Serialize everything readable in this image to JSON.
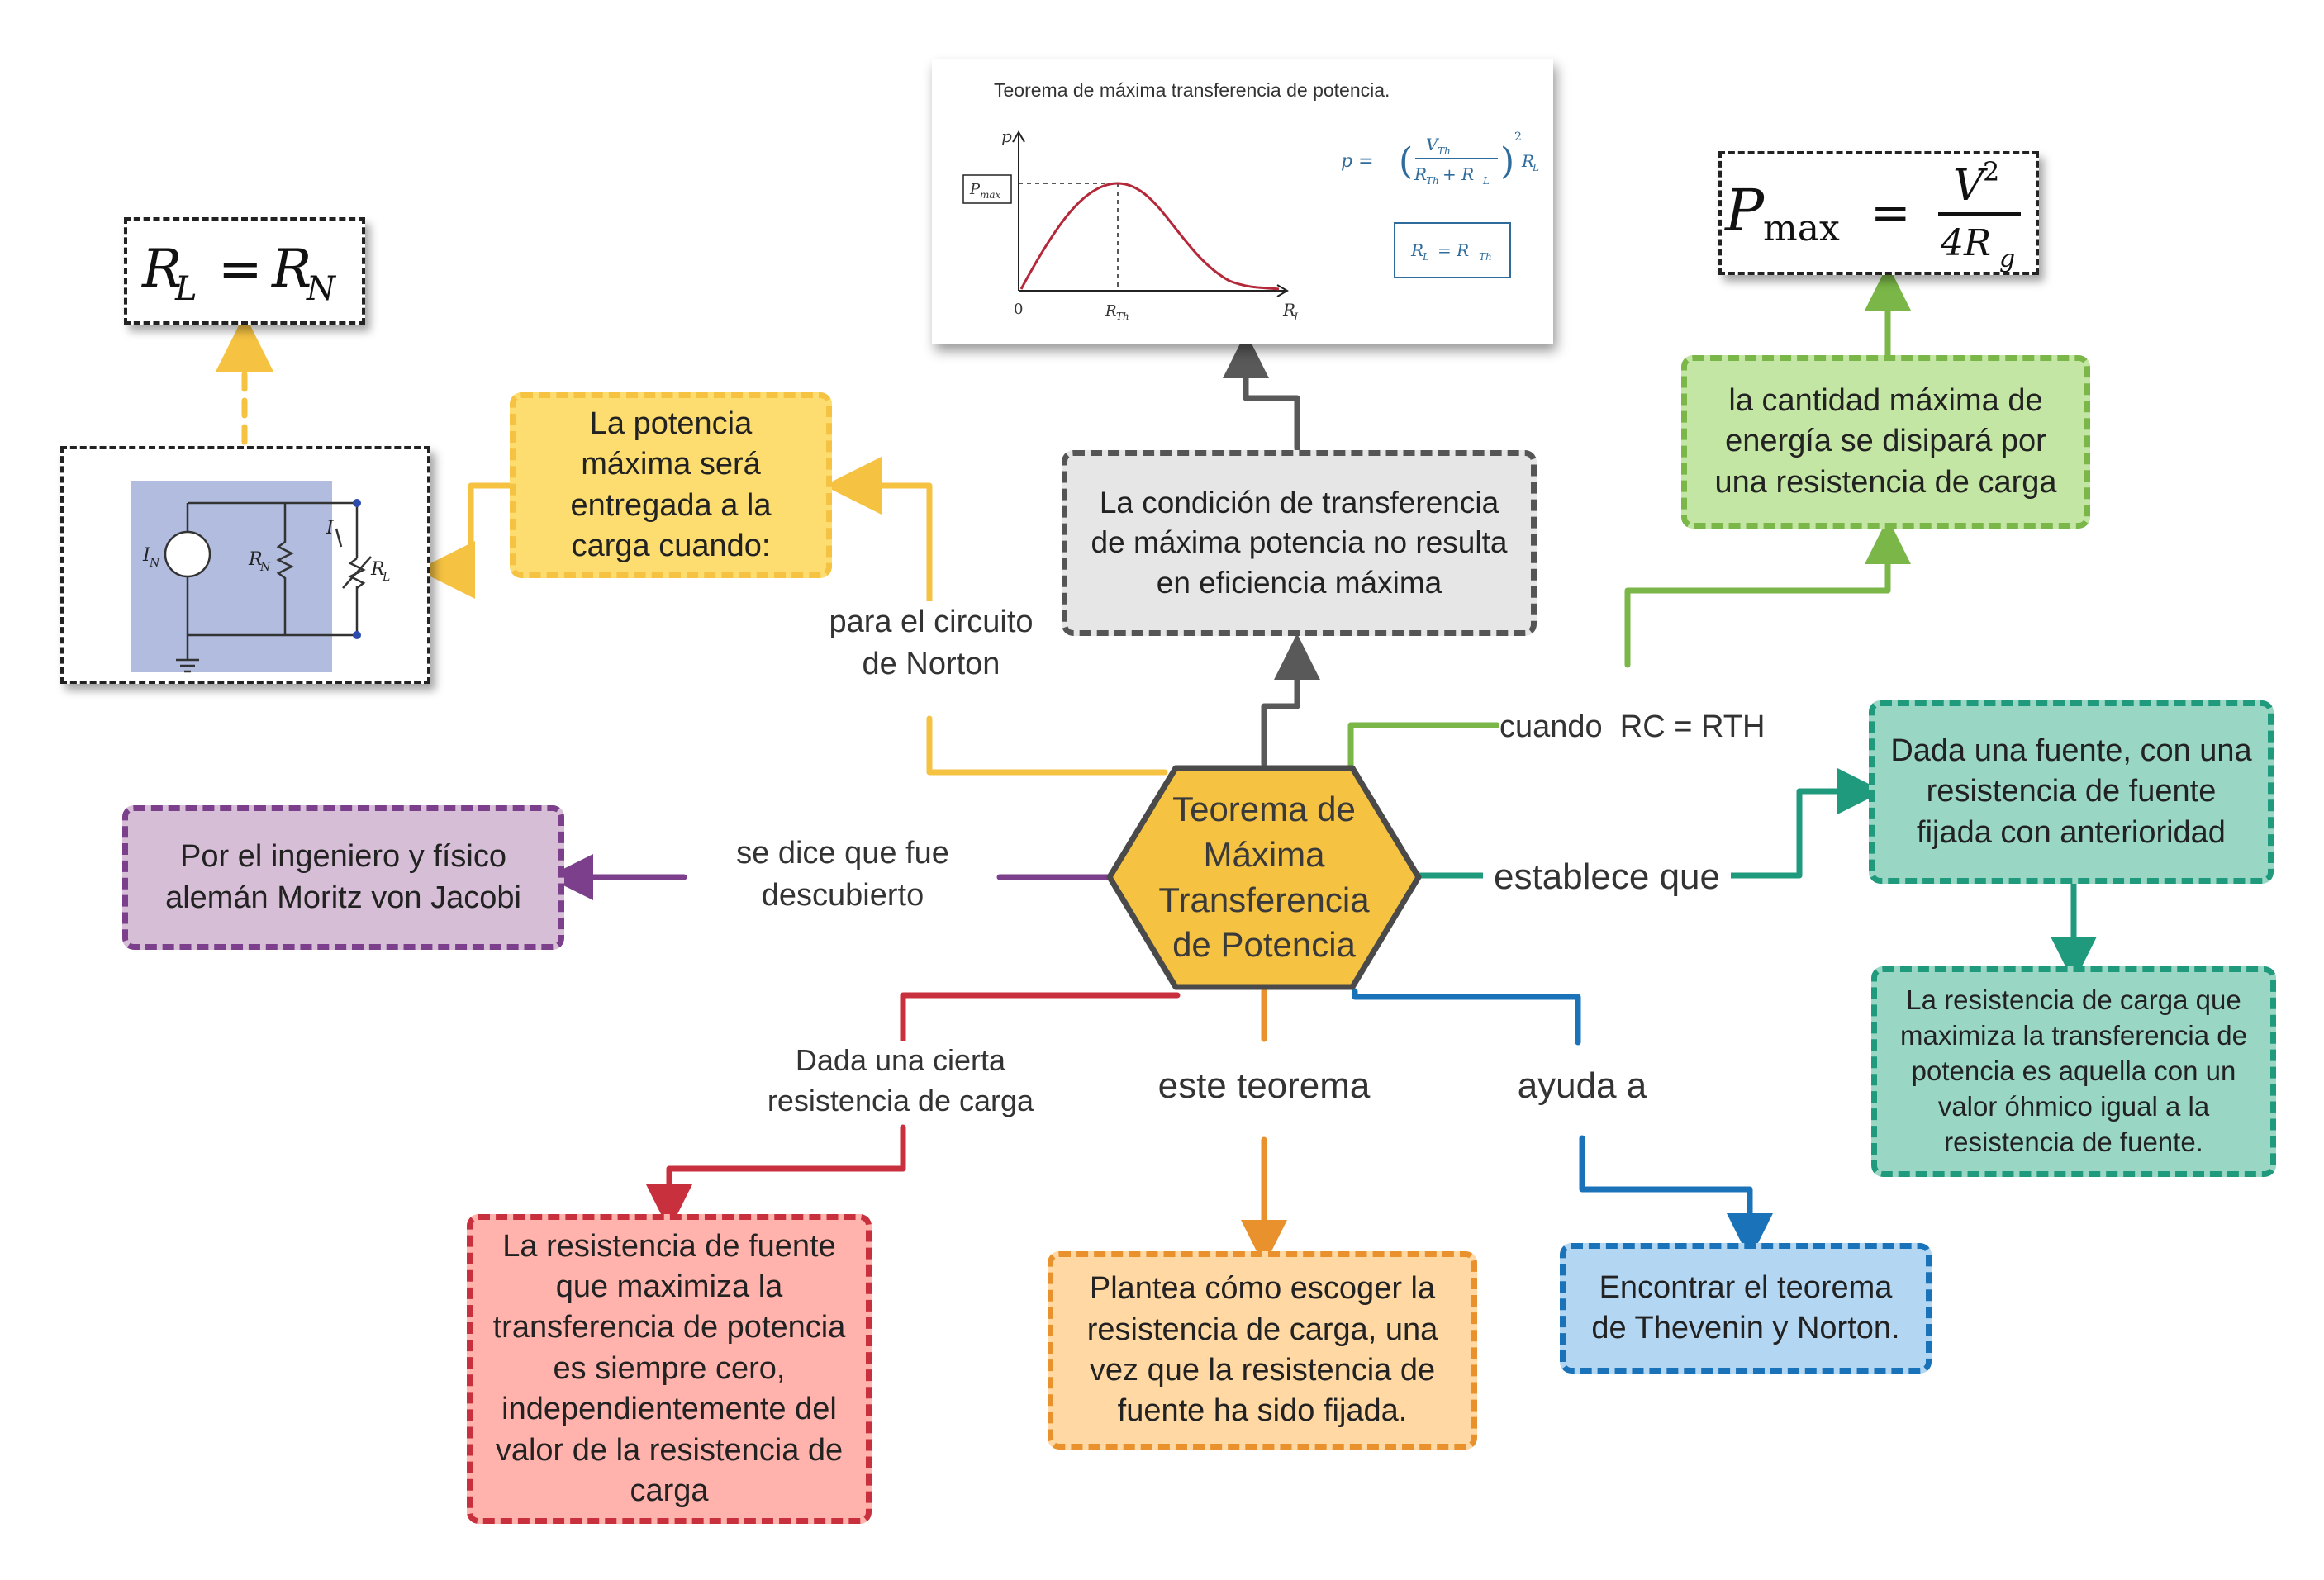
{
  "center": {
    "title": "Teorema de Máxima Transferencia de Potencia"
  },
  "labels": {
    "norton": "para el circuito de Norton",
    "jacobi": "se dice que fue descubierto",
    "cuando": "cuando  RC = RTH",
    "establece": "establece que",
    "dada_carga": "Dada una cierta resistencia de carga",
    "este_teorema": "este teorema",
    "ayuda": "ayuda a"
  },
  "boxes": {
    "potencia_maxima": "La potencia máxima será entregada a la carga cuando:",
    "condicion": "La condición de transferencia de máxima potencia no resulta en eficiencia máxima",
    "cantidad_maxima": "la cantidad máxima de energía se disipará por una resistencia de carga",
    "jacobi": "Por el ingeniero y físico alemán Moritz von Jacobi",
    "fuente": "Dada una fuente, con una resistencia de fuente fijada con anterioridad",
    "carga_maximiza": "La resistencia de carga que maximiza la transferencia de potencia es aquella con un valor óhmico igual a la resistencia de fuente.",
    "fuente_cero": "La resistencia de fuente que maximiza la transferencia de potencia es siempre cero, independientemente del valor de la resistencia de carga",
    "plantea": "Plantea cómo escoger la resistencia de carga, una vez que la resistencia de fuente ha sido fijada.",
    "thevenin": "Encontrar el teorema de Thevenin y Norton."
  },
  "formulas": {
    "rl_rn": {
      "lhs": "R",
      "lhs_sub": "L",
      "eq": "=",
      "rhs": "R",
      "rhs_sub": "N"
    },
    "pmax": {
      "p": "P",
      "p_sub": "max",
      "eq": "=",
      "num": "V",
      "num_sup": "2",
      "den": "4R",
      "den_sub": "g"
    }
  },
  "graph": {
    "title": "Teorema de máxima transferencia de potencia.",
    "y_axis": "p",
    "x_axis": "R",
    "x_axis_sub": "L",
    "origin": "0",
    "pmax": "P",
    "pmax_sub": "max",
    "rth": "R",
    "rth_sub": "Th",
    "formula_p": "p =",
    "formula_num": "V",
    "formula_num_sub": "Th",
    "formula_den": "R",
    "formula_den_sub": "Th",
    "formula_den_plus": "+ R",
    "formula_den_plus_sub": "L",
    "formula_exp": "2",
    "formula_rl": "R",
    "formula_rl_sub": "L",
    "condition": "R",
    "condition_sub": "L",
    "condition_eq": "= R",
    "condition_rhs_sub": "Th"
  },
  "circuit": {
    "source": "I",
    "source_sub": "N",
    "resistor": "R",
    "resistor_sub": "N",
    "current": "I",
    "load": "R",
    "load_sub": "L"
  },
  "colors": {
    "yellow": "#f5c242",
    "gray": "#595959",
    "green": "#7ab648",
    "purple": "#7b3f8c",
    "teal": "#1f9a7c",
    "red": "#c9303e",
    "orange": "#e8912d",
    "blue": "#1a73b8"
  }
}
